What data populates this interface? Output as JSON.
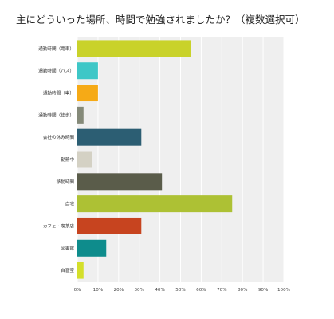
{
  "chart_data": {
    "type": "bar",
    "orientation": "horizontal",
    "title": "主にどういった場所、時間で勉強されましたか？（複数選択可）",
    "categories": [
      "通勤時間（電車）",
      "通勤時間（バス）",
      "通勤時間（車）",
      "通勤時間（徒歩）",
      "会社の休み時間",
      "勤務中",
      "移動時間",
      "自宅",
      "カフェ・喫茶店",
      "図書館",
      "自習室"
    ],
    "values": [
      55,
      10,
      10,
      3,
      31,
      7,
      41,
      75,
      31,
      14,
      3
    ],
    "colors": [
      "#c9d22a",
      "#3ec7c7",
      "#f6aa16",
      "#858a79",
      "#2c5e73",
      "#d4d1c4",
      "#5a5c4a",
      "#adc134",
      "#c7441f",
      "#0e8c8c",
      "#d4df2a"
    ],
    "xlim": [
      0,
      100
    ],
    "xticks": [
      "0%",
      "10%",
      "20%",
      "30%",
      "40%",
      "50%",
      "60%",
      "70%",
      "80%",
      "90%",
      "100%"
    ],
    "grid": true,
    "legend": "none"
  }
}
